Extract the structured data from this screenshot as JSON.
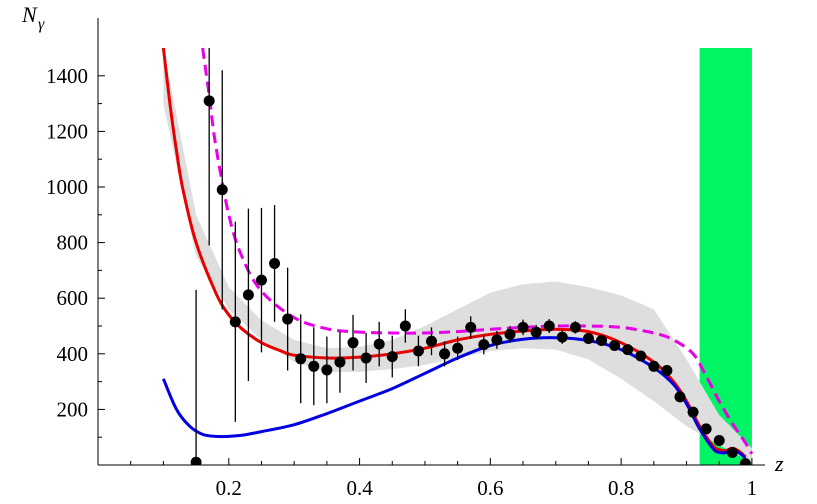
{
  "chart_data": {
    "type": "scatter",
    "title": "",
    "xlabel": "z",
    "ylabel_main": "N",
    "ylabel_sub": "γ",
    "xlim": [
      0.0,
      1.02
    ],
    "ylim": [
      0,
      1500
    ],
    "x_ticks": [
      {
        "value": 0.2,
        "label": "0.2"
      },
      {
        "value": 0.4,
        "label": "0.4"
      },
      {
        "value": 0.6,
        "label": "0.6"
      },
      {
        "value": 0.8,
        "label": "0.8"
      },
      {
        "value": 1.0,
        "label": "1"
      }
    ],
    "y_ticks": [
      {
        "value": 200,
        "label": "200"
      },
      {
        "value": 400,
        "label": "400"
      },
      {
        "value": 600,
        "label": "600"
      },
      {
        "value": 800,
        "label": "800"
      },
      {
        "value": 1000,
        "label": "1000"
      },
      {
        "value": 1200,
        "label": "1200"
      },
      {
        "value": 1400,
        "label": "1400"
      }
    ],
    "grid": false,
    "shaded_region": {
      "x_start": 0.92,
      "x_end": 1.0,
      "color": "#00f463"
    },
    "band": {
      "color": "#dedede",
      "x": [
        0.1,
        0.15,
        0.2,
        0.25,
        0.3,
        0.35,
        0.4,
        0.45,
        0.5,
        0.55,
        0.6,
        0.65,
        0.7,
        0.75,
        0.8,
        0.85,
        0.9,
        0.95,
        1.0
      ],
      "lower": [
        1300,
        750,
        560,
        450,
        370,
        335,
        335,
        345,
        360,
        385,
        410,
        420,
        415,
        380,
        310,
        230,
        140,
        70,
        10
      ],
      "upper": [
        1500,
        900,
        640,
        520,
        450,
        420,
        425,
        450,
        500,
        560,
        620,
        650,
        660,
        640,
        610,
        560,
        380,
        180,
        60
      ]
    },
    "series": [
      {
        "style": "dashed",
        "color": "#e800e8",
        "x": [
          0.16,
          0.17,
          0.18,
          0.2,
          0.22,
          0.25,
          0.3,
          0.35,
          0.4,
          0.45,
          0.5,
          0.55,
          0.6,
          0.65,
          0.7,
          0.75,
          0.8,
          0.85,
          0.88,
          0.91,
          0.93,
          0.95,
          0.97,
          0.99,
          1.0
        ],
        "y": [
          1500,
          1330,
          1150,
          900,
          750,
          625,
          530,
          490,
          478,
          475,
          475,
          480,
          488,
          495,
          500,
          500,
          495,
          475,
          450,
          400,
          320,
          230,
          150,
          80,
          40
        ]
      },
      {
        "style": "solid",
        "color": "#e80000",
        "x": [
          0.1,
          0.11,
          0.12,
          0.13,
          0.15,
          0.18,
          0.2,
          0.22,
          0.25,
          0.28,
          0.3,
          0.35,
          0.4,
          0.45,
          0.5,
          0.55,
          0.6,
          0.65,
          0.7,
          0.75,
          0.8,
          0.85,
          0.88,
          0.9,
          0.92,
          0.94,
          0.95,
          0.96,
          0.97,
          0.98,
          0.99
        ],
        "y": [
          1500,
          1300,
          1130,
          990,
          800,
          620,
          540,
          490,
          440,
          410,
          395,
          385,
          388,
          400,
          420,
          450,
          470,
          482,
          488,
          480,
          440,
          370,
          300,
          230,
          140,
          70,
          55,
          52,
          60,
          50,
          30
        ]
      },
      {
        "style": "solid",
        "color": "#0000e0",
        "x": [
          0.1,
          0.12,
          0.14,
          0.16,
          0.18,
          0.2,
          0.22,
          0.25,
          0.3,
          0.35,
          0.4,
          0.45,
          0.5,
          0.55,
          0.6,
          0.65,
          0.7,
          0.75,
          0.8,
          0.85,
          0.88,
          0.9,
          0.92,
          0.94,
          0.95,
          0.96,
          0.97,
          0.98,
          0.99
        ],
        "y": [
          310,
          200,
          140,
          110,
          103,
          103,
          107,
          120,
          145,
          185,
          230,
          275,
          330,
          385,
          430,
          452,
          458,
          448,
          415,
          350,
          290,
          220,
          130,
          60,
          45,
          45,
          55,
          45,
          25
        ]
      }
    ],
    "points": [
      {
        "x": 0.15,
        "y": 10,
        "err": 620
      },
      {
        "x": 0.17,
        "y": 1310,
        "err": 520
      },
      {
        "x": 0.19,
        "y": 990,
        "err": 430
      },
      {
        "x": 0.21,
        "y": 515,
        "err": 360
      },
      {
        "x": 0.23,
        "y": 612,
        "err": 310
      },
      {
        "x": 0.25,
        "y": 665,
        "err": 260
      },
      {
        "x": 0.27,
        "y": 725,
        "err": 210
      },
      {
        "x": 0.29,
        "y": 525,
        "err": 185
      },
      {
        "x": 0.31,
        "y": 382,
        "err": 160
      },
      {
        "x": 0.33,
        "y": 355,
        "err": 140
      },
      {
        "x": 0.35,
        "y": 342,
        "err": 120
      },
      {
        "x": 0.37,
        "y": 370,
        "err": 110
      },
      {
        "x": 0.39,
        "y": 440,
        "err": 100
      },
      {
        "x": 0.41,
        "y": 385,
        "err": 90
      },
      {
        "x": 0.43,
        "y": 435,
        "err": 80
      },
      {
        "x": 0.45,
        "y": 390,
        "err": 75
      },
      {
        "x": 0.47,
        "y": 500,
        "err": 60
      },
      {
        "x": 0.49,
        "y": 410,
        "err": 55
      },
      {
        "x": 0.51,
        "y": 445,
        "err": 50
      },
      {
        "x": 0.53,
        "y": 400,
        "err": 45
      },
      {
        "x": 0.55,
        "y": 420,
        "err": 42
      },
      {
        "x": 0.57,
        "y": 495,
        "err": 40
      },
      {
        "x": 0.59,
        "y": 433,
        "err": 35
      },
      {
        "x": 0.61,
        "y": 450,
        "err": 32
      },
      {
        "x": 0.63,
        "y": 470,
        "err": 30
      },
      {
        "x": 0.65,
        "y": 495,
        "err": 28
      },
      {
        "x": 0.67,
        "y": 478,
        "err": 26
      },
      {
        "x": 0.69,
        "y": 500,
        "err": 25
      },
      {
        "x": 0.71,
        "y": 460,
        "err": 24
      },
      {
        "x": 0.73,
        "y": 495,
        "err": 22
      },
      {
        "x": 0.75,
        "y": 455,
        "err": 20
      },
      {
        "x": 0.77,
        "y": 448,
        "err": 19
      },
      {
        "x": 0.79,
        "y": 430,
        "err": 18
      },
      {
        "x": 0.81,
        "y": 415,
        "err": 17
      },
      {
        "x": 0.83,
        "y": 392,
        "err": 16
      },
      {
        "x": 0.85,
        "y": 355,
        "err": 15
      },
      {
        "x": 0.87,
        "y": 340,
        "err": 14
      },
      {
        "x": 0.89,
        "y": 245,
        "err": 12
      },
      {
        "x": 0.91,
        "y": 190,
        "err": 10
      },
      {
        "x": 0.93,
        "y": 130,
        "err": 9
      },
      {
        "x": 0.95,
        "y": 88,
        "err": 8
      },
      {
        "x": 0.97,
        "y": 45,
        "err": 6
      },
      {
        "x": 0.99,
        "y": 5,
        "err": 4
      }
    ]
  }
}
